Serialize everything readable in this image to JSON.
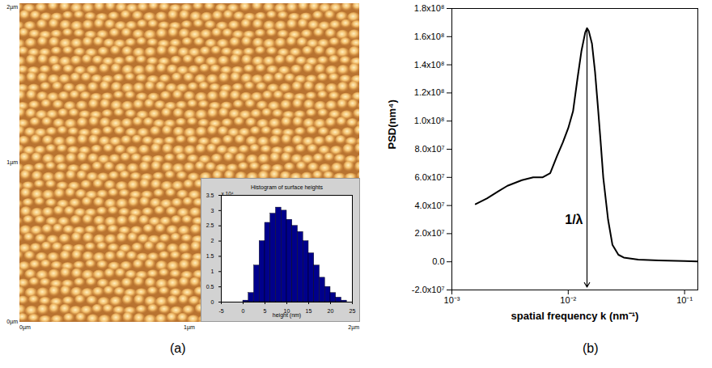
{
  "chart_data": [
    {
      "type": "image",
      "panel": "(a)",
      "xlim": [
        0,
        2
      ],
      "ylim": [
        0,
        2
      ],
      "xticks": [
        {
          "value": 0,
          "label": "0µm"
        },
        {
          "value": 1,
          "label": "1µm"
        },
        {
          "value": 2,
          "label": "2µm"
        }
      ],
      "yticks": [
        {
          "value": 0,
          "label": "0µm"
        },
        {
          "value": 1,
          "label": "1µm"
        },
        {
          "value": 2,
          "label": "2µm"
        }
      ],
      "inset": {
        "type": "histogram",
        "title": "Histogram of surface heights",
        "x_label": "height (nm)",
        "y_multiplier": "x 10⁴",
        "color": "#00008b",
        "bins": [
          0,
          1.25,
          2.5,
          3.75,
          5,
          6.25,
          7.5,
          8.75,
          10,
          11.25,
          12.5,
          13.75,
          15,
          16.25,
          17.5,
          18.75,
          20,
          21.25,
          22.5,
          23.75
        ],
        "counts": [
          500,
          3000,
          12000,
          20000,
          26000,
          29000,
          31000,
          30000,
          27000,
          25000,
          23000,
          20000,
          16000,
          12000,
          8000,
          5000,
          3000,
          1500,
          500
        ],
        "xlim": [
          -5,
          25
        ],
        "xticks": [
          -5,
          0,
          5,
          10,
          15,
          20,
          25
        ],
        "ylim": [
          0,
          35000
        ],
        "yticks": [
          0,
          {
            "value": 5000,
            "label": "0.5"
          },
          {
            "value": 10000,
            "label": "1"
          },
          {
            "value": 15000,
            "label": "1.5"
          },
          {
            "value": 20000,
            "label": "2"
          },
          {
            "value": 25000,
            "label": "2.5"
          },
          {
            "value": 30000,
            "label": "3"
          },
          {
            "value": 35000,
            "label": "3.5"
          }
        ],
        "grid": false
      }
    },
    {
      "type": "line",
      "panel": "(b)",
      "x_label": "spatial frequency k (nm⁻¹)",
      "y_label": "PSD(nm⁴)",
      "log": "x",
      "grid": false,
      "color": "#000000",
      "x": [
        0.0016,
        0.002,
        0.0025,
        0.003,
        0.004,
        0.005,
        0.006,
        0.007,
        0.008,
        0.009,
        0.01,
        0.011,
        0.012,
        0.013,
        0.014,
        0.0145,
        0.015,
        0.016,
        0.017,
        0.018,
        0.019,
        0.02,
        0.022,
        0.024,
        0.027,
        0.03,
        0.04,
        0.06,
        0.1,
        0.13
      ],
      "values": [
        41000000,
        45000000,
        50000000,
        54000000,
        58000000,
        60000000,
        60000000,
        63000000,
        75000000,
        85000000,
        95000000,
        107000000,
        130000000,
        150000000,
        163000000,
        166000000,
        164000000,
        155000000,
        135000000,
        110000000,
        85000000,
        60000000,
        30000000,
        12000000,
        5000000,
        3000000,
        1500000,
        1000000,
        500000,
        300000
      ],
      "xlim": [
        0.001,
        0.13
      ],
      "xticks": [
        {
          "value": 0.001,
          "label": "10⁻³"
        },
        {
          "value": 0.01,
          "label": "10⁻²"
        },
        {
          "value": 0.1,
          "label": "10⁻¹"
        }
      ],
      "ylim": [
        -20000000,
        180000000
      ],
      "yticks": [
        {
          "value": -20000000,
          "label": "-2.0x10⁷"
        },
        {
          "value": 0,
          "label": "0.0"
        },
        {
          "value": 20000000,
          "label": "2.0x10⁷"
        },
        {
          "value": 40000000,
          "label": "4.0x10⁷"
        },
        {
          "value": 60000000,
          "label": "6.0x10⁷"
        },
        {
          "value": 80000000,
          "label": "8.0x10⁷"
        },
        {
          "value": 100000000,
          "label": "1.0x10⁸"
        },
        {
          "value": 120000000,
          "label": "1.2x10⁸"
        },
        {
          "value": 140000000,
          "label": "1.4x10⁸"
        },
        {
          "value": 160000000,
          "label": "1.6x10⁸"
        },
        {
          "value": 180000000,
          "label": "1.8x10⁸"
        }
      ],
      "annotations": [
        {
          "text": "1/λ",
          "x": 0.0145,
          "y_start": 165000000,
          "y_end": -18000000,
          "text_y": 30000000
        }
      ]
    }
  ]
}
